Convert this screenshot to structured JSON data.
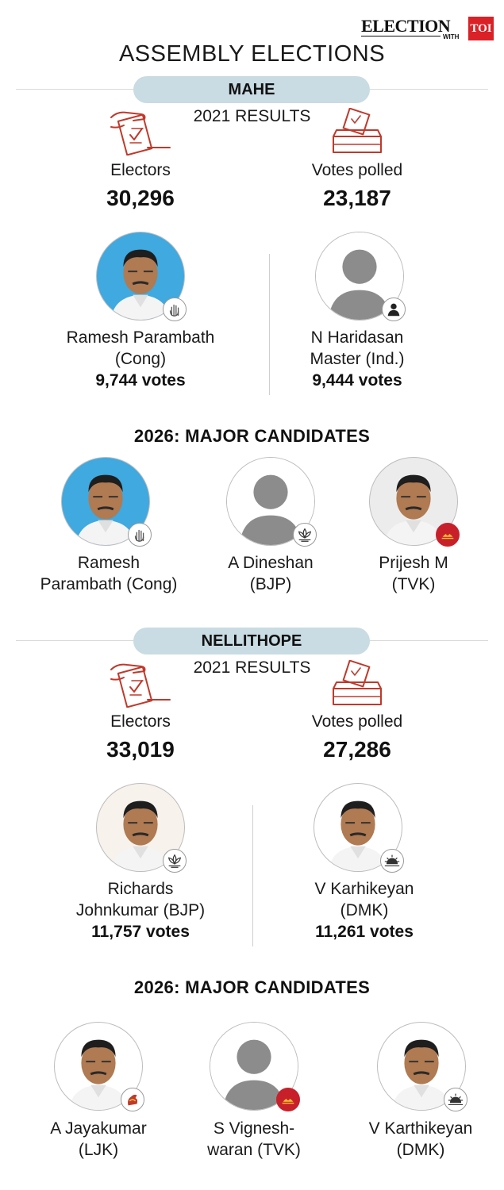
{
  "logo": {
    "word": "ELECTION",
    "with": "WITH",
    "brand": "TOI"
  },
  "title": "ASSEMBLY ELECTIONS",
  "colors": {
    "pill": "#c9dbe3",
    "icon_stroke": "#c0392b",
    "tvk_badge": "#c8202a",
    "photo_blue": "#3fa9e0"
  },
  "sections": [
    {
      "name": "MAHE",
      "results_label": "2021 RESULTS",
      "electors_label": "Electors",
      "electors": "30,296",
      "votes_polled_label": "Votes polled",
      "votes_polled": "23,187",
      "results": [
        {
          "name_line1": "Ramesh Parambath",
          "name_line2": "(Cong)",
          "votes": "9,744 votes",
          "photo": "photo-blue",
          "symbol": "hand-icon"
        },
        {
          "name_line1": "N Haridasan",
          "name_line2": "Master (Ind.)",
          "votes": "9,444 votes",
          "photo": "placeholder",
          "symbol": "person-icon"
        }
      ],
      "candidates_heading": "2026: MAJOR CANDIDATES",
      "candidates": [
        {
          "name_line1": "Ramesh",
          "name_line2": "Parambath (Cong)",
          "symbol": "hand-icon"
        },
        {
          "name_line1": "A Dineshan",
          "name_line2": "(BJP)",
          "symbol": "lotus-icon"
        },
        {
          "name_line1": "Prijesh M",
          "name_line2": "(TVK)",
          "symbol": "tvk-icon"
        }
      ]
    },
    {
      "name": "NELLITHOPE",
      "results_label": "2021 RESULTS",
      "electors_label": "Electors",
      "electors": "33,019",
      "votes_polled_label": "Votes polled",
      "votes_polled": "27,286",
      "results": [
        {
          "name_line1": "Richards",
          "name_line2": "Johnkumar (BJP)",
          "votes": "11,757 votes",
          "photo": "photo-light",
          "symbol": "lotus-icon"
        },
        {
          "name_line1": "V Karhikeyan",
          "name_line2": "(DMK)",
          "votes": "11,261 votes",
          "photo": "photo-white",
          "symbol": "rising-sun-icon"
        }
      ],
      "candidates_heading": "2026: MAJOR CANDIDATES",
      "candidates": [
        {
          "name_line1": "A Jayakumar",
          "name_line2": "(LJK)",
          "symbol": "ljk-icon"
        },
        {
          "name_line1": "S Vignesh-",
          "name_line2": "waran (TVK)",
          "symbol": "tvk-icon"
        },
        {
          "name_line1": "V Karthikeyan",
          "name_line2": "(DMK)",
          "symbol": "rising-sun-icon"
        }
      ]
    }
  ]
}
